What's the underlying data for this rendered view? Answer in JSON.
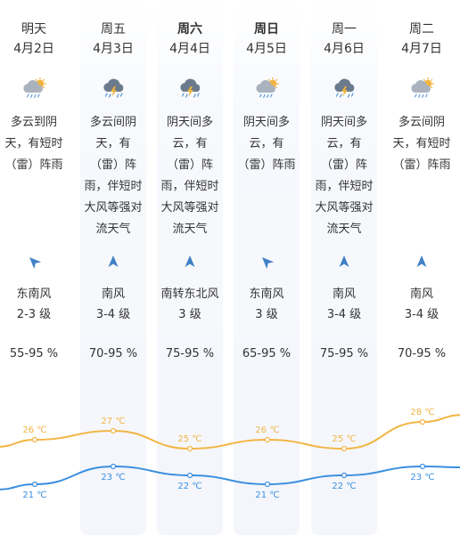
{
  "colors": {
    "high": "#f2b544",
    "low": "#3b8fe0",
    "arrow": "#3f7fc6",
    "cloud": "#8a939c",
    "sun": "#f3b53f",
    "lightning": "#f0b23c"
  },
  "days": [
    {
      "day": "明天",
      "date": "4月2日",
      "icon": "cloudy-sun-rain-icon",
      "desc": "多云到阴天，有短时（雷）阵雨",
      "wind_dir": "东南风",
      "wind_level": "2-3 级",
      "humidity": "55-95 %"
    },
    {
      "day": "周五",
      "date": "4月3日",
      "icon": "thunderstorm-icon",
      "desc": "多云间阴天，有（雷）阵雨，伴短时大风等强对流天气",
      "wind_dir": "南风",
      "wind_level": "3-4 级",
      "humidity": "70-95 %"
    },
    {
      "day": "周六",
      "date": "4月4日",
      "icon": "thunderstorm-icon",
      "desc": "阴天间多云，有（雷）阵雨，伴短时大风等强对流天气",
      "wind_dir": "南转东北风",
      "wind_level": "3 级",
      "humidity": "75-95 %"
    },
    {
      "day": "周日",
      "date": "4月5日",
      "icon": "cloudy-sun-rain-icon",
      "desc": "阴天间多云，有（雷）阵雨",
      "wind_dir": "东南风",
      "wind_level": "3 级",
      "humidity": "65-95 %"
    },
    {
      "day": "周一",
      "date": "4月6日",
      "icon": "thunderstorm-icon",
      "desc": "阴天间多云，有（雷）阵雨，伴短时大风等强对流天气",
      "wind_dir": "南风",
      "wind_level": "3-4 级",
      "humidity": "75-95 %"
    },
    {
      "day": "周二",
      "date": "4月7日",
      "icon": "cloudy-sun-rain-icon",
      "desc": "多云间阴天，有短时（雷）阵雨",
      "wind_dir": "南风",
      "wind_level": "3-4 级",
      "humidity": "70-95 %"
    }
  ],
  "chart_data": {
    "type": "line",
    "categories": [
      "4月2日",
      "4月3日",
      "4月4日",
      "4月5日",
      "4月6日",
      "4月7日"
    ],
    "series": [
      {
        "values": [
          26,
          27,
          25,
          26,
          25,
          28
        ]
      },
      {
        "values": [
          21,
          23,
          22,
          21,
          22,
          23
        ]
      }
    ],
    "labels": [
      [
        "26 ℃",
        "27 ℃",
        "25 ℃",
        "26 ℃",
        "25 ℃",
        "28 ℃"
      ],
      [
        "21 ℃",
        "23 ℃",
        "22 ℃",
        "21 ℃",
        "22 ℃",
        "23 ℃"
      ]
    ],
    "grid": false,
    "legend": "none"
  }
}
